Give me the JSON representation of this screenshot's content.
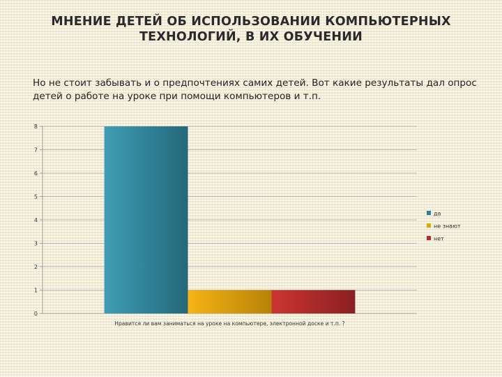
{
  "title": {
    "line1": "МНЕНИЕ ДЕТЕЙ ОБ ИСПОЛЬЗОВАНИИ КОМПЬЮТЕРНЫХ",
    "line2": "ТЕХНОЛОГИЙ, В ИХ ОБУЧЕНИИ"
  },
  "intro": "Но не стоит забывать и о предпочтениях самих детей. Вот какие результаты дал опрос детей о работе на уроке при помощи компьютеров и т.п.",
  "chart_data": {
    "type": "bar",
    "categories": [
      "Нравится ли вам заниматься на уроке на компьютере, электронной доске и т.п. ?"
    ],
    "series": [
      {
        "name": "да",
        "values": [
          8
        ],
        "color": "#2f8296"
      },
      {
        "name": "не знают",
        "values": [
          1
        ],
        "color": "#e1a10b"
      },
      {
        "name": "нет",
        "values": [
          1
        ],
        "color": "#b42a2a"
      }
    ],
    "ylim": [
      0,
      8
    ],
    "yticks": [
      0,
      1,
      2,
      3,
      4,
      5,
      6,
      7,
      8
    ],
    "grid": true,
    "legend_position": "right"
  }
}
